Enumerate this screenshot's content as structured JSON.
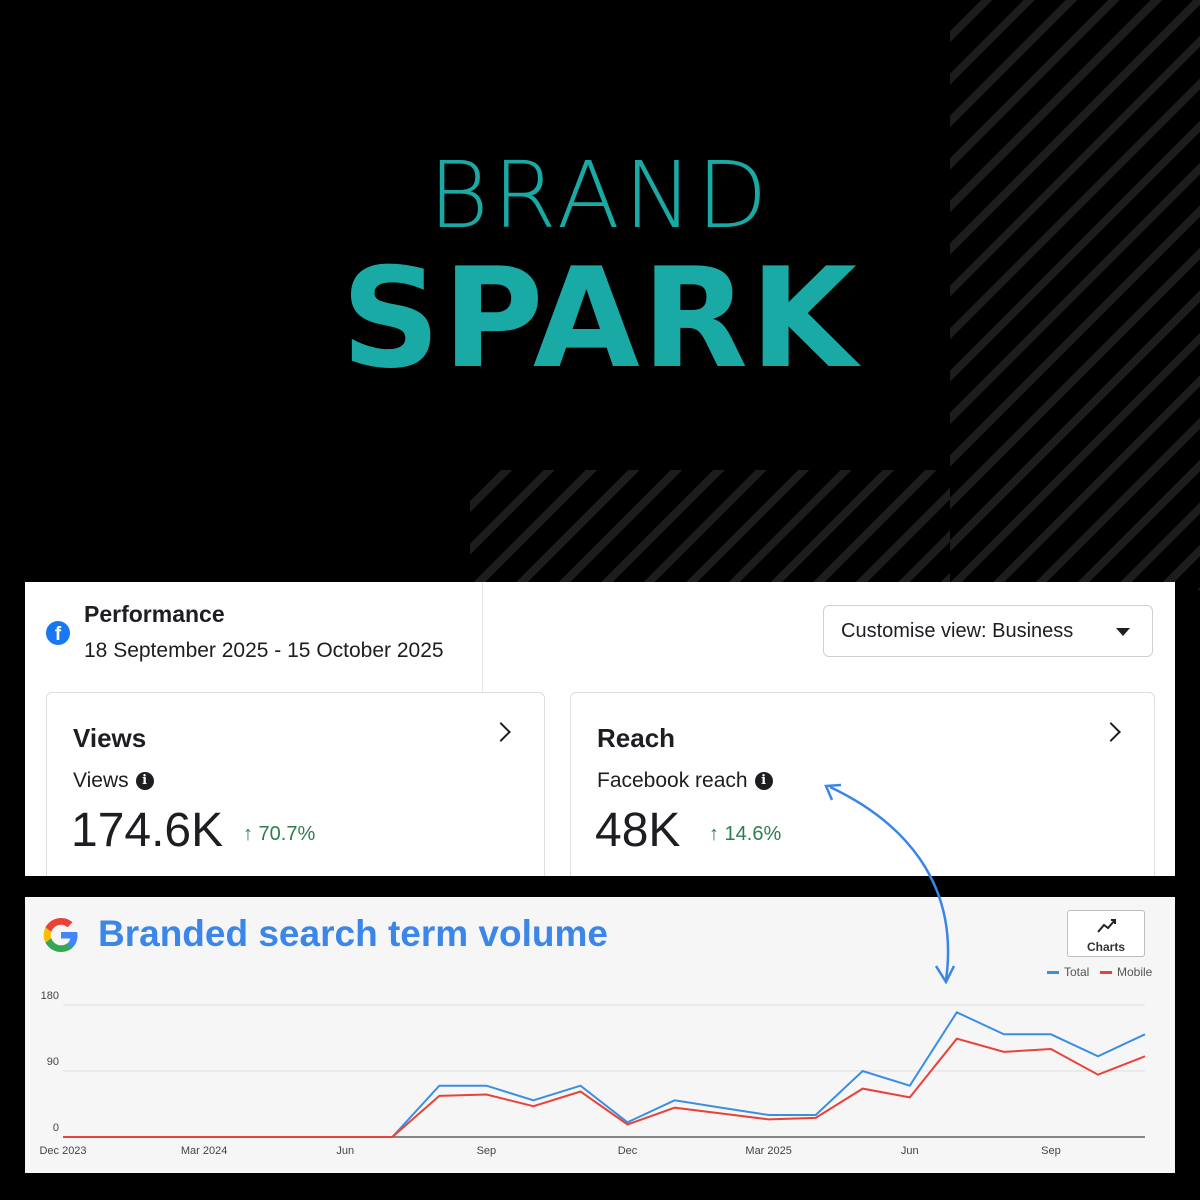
{
  "brand": {
    "line1": "BRAND",
    "line2": "SPARK"
  },
  "facebook": {
    "title": "Performance",
    "date_range": "18 September 2025 - 15 October 2025",
    "customise_label": "Customise view: Business",
    "cards": [
      {
        "title": "Views",
        "metric_label": "Views",
        "value": "174.6K",
        "change": "↑ 70.7%"
      },
      {
        "title": "Reach",
        "metric_label": "Facebook reach",
        "value": "48K",
        "change": "↑ 14.6%"
      }
    ],
    "icon": "facebook-icon"
  },
  "google": {
    "title": "Branded search term volume",
    "charts_button": "Charts",
    "icon": "google-icon"
  },
  "colors": {
    "brand": "#1aaaa5",
    "total": "#3b8fe0",
    "mobile": "#e8433b",
    "google_title": "#3b86e8"
  },
  "chart_data": {
    "type": "line",
    "title": "",
    "xlabel": "",
    "ylabel": "",
    "ylim": [
      0,
      180
    ],
    "yticks": [
      0,
      90,
      180
    ],
    "xtick_labels": [
      "Dec 2023",
      "Mar 2024",
      "Jun",
      "Sep",
      "Dec",
      "Mar 2025",
      "Jun",
      "Sep"
    ],
    "x": [
      "Dec 2023",
      "Jan 2024",
      "Feb 2024",
      "Mar 2024",
      "Apr 2024",
      "May 2024",
      "Jun 2024",
      "Jul 2024",
      "Aug 2024",
      "Sep 2024",
      "Oct 2024",
      "Nov 2024",
      "Dec 2024",
      "Jan 2025",
      "Feb 2025",
      "Mar 2025",
      "Apr 2025",
      "May 2025",
      "Jun 2025",
      "Jul 2025",
      "Aug 2025",
      "Sep 2025",
      "Oct 2025",
      "Nov 2025"
    ],
    "series": [
      {
        "name": "Total",
        "values": [
          0,
          0,
          0,
          0,
          0,
          0,
          0,
          0,
          70,
          70,
          50,
          70,
          20,
          50,
          40,
          30,
          30,
          90,
          70,
          170,
          140,
          140,
          110,
          140
        ]
      },
      {
        "name": "Mobile",
        "values": [
          0,
          0,
          0,
          0,
          0,
          0,
          0,
          0,
          56,
          58,
          42,
          62,
          17,
          40,
          32,
          24,
          26,
          66,
          54,
          134,
          116,
          120,
          85,
          110
        ]
      }
    ],
    "legend": "top-right",
    "grid": true
  }
}
